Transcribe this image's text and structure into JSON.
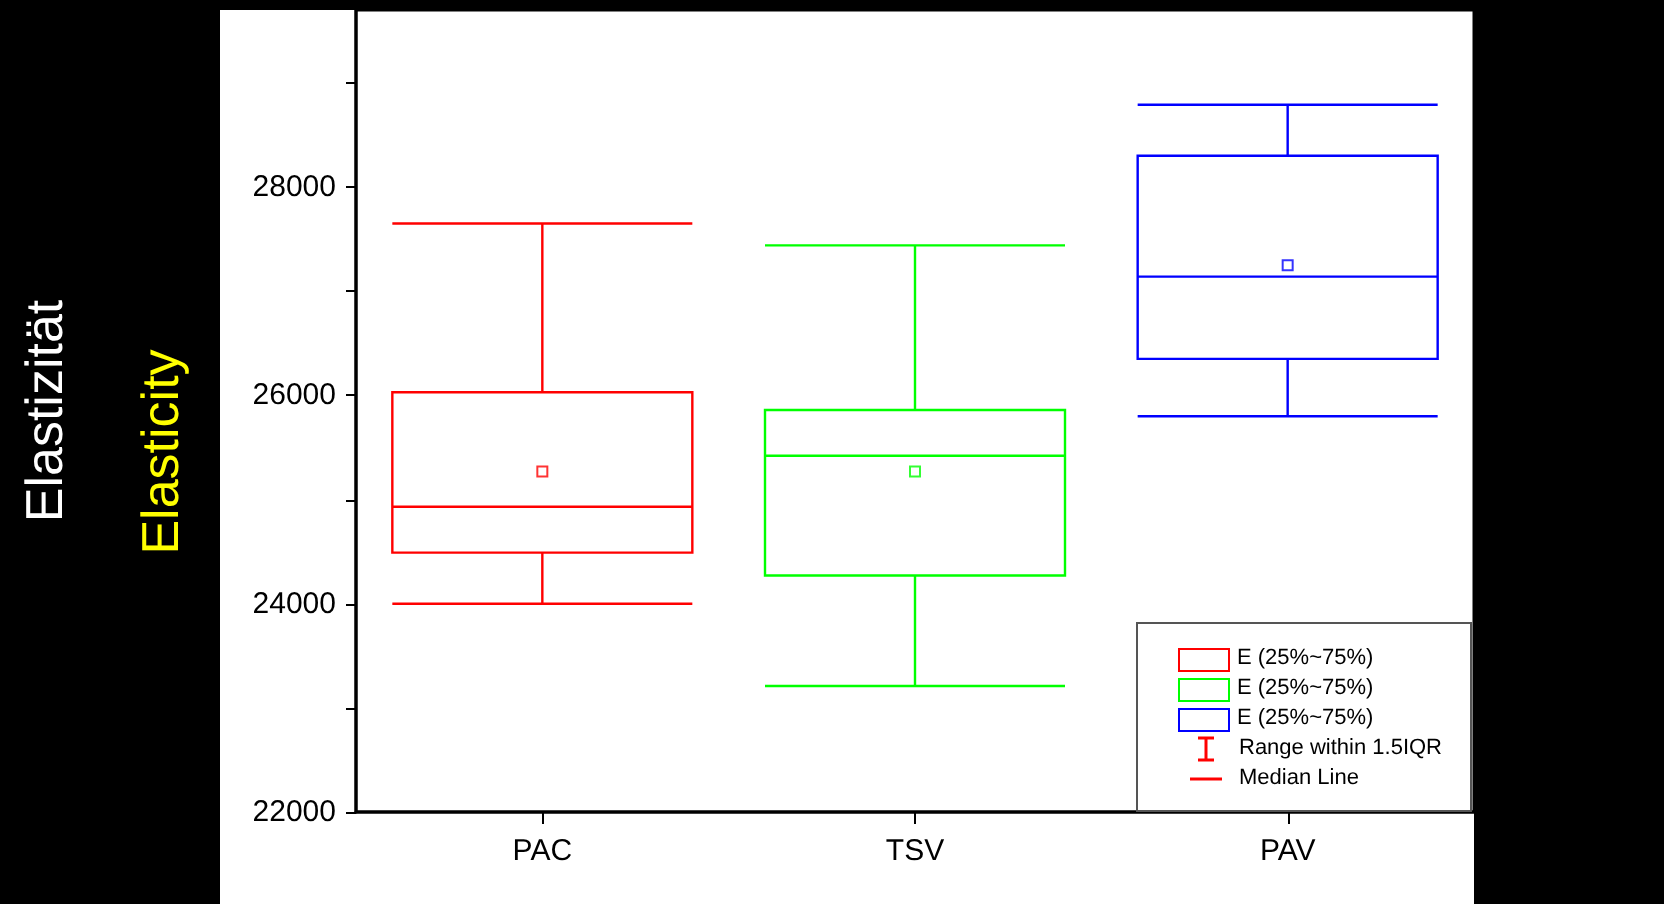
{
  "chart_data": {
    "type": "box",
    "ylabel": "Elastizität",
    "annotations": [
      "Elasticity",
      "Range within 1.5IQR",
      "Median Line"
    ],
    "categories": [
      "PAC",
      "TSV",
      "PAV"
    ],
    "series": [
      {
        "name": "E (25%~75%)",
        "color": "#ff0000",
        "boxes": [
          {
            "low": 24000,
            "q1": 24490,
            "median": 24930,
            "q3": 26030,
            "high": 27650,
            "mean": 25270
          },
          null,
          null
        ]
      },
      {
        "name": "E (25%~75%)",
        "color": "#00ff00",
        "boxes": [
          null,
          {
            "low": 23210,
            "q1": 24270,
            "median": 25420,
            "q3": 25860,
            "high": 27440,
            "mean": 25270
          },
          null
        ]
      },
      {
        "name": "E (25%~75%)",
        "color": "#0000ff",
        "boxes": [
          null,
          null,
          {
            "low": 25800,
            "q1": 26350,
            "median": 27140,
            "q3": 28300,
            "high": 28790,
            "mean": 27250
          }
        ]
      }
    ],
    "ylim": [
      22000,
      29700
    ],
    "yticks": [
      22000,
      {
        "value": 23000,
        "label": null
      },
      24000,
      {
        "value": 25000,
        "label": null
      },
      26000,
      {
        "value": 27000,
        "label": null
      },
      28000,
      {
        "value": 29000,
        "label": null
      }
    ],
    "grid": false,
    "legend": "bottom right",
    "marker": "square"
  }
}
